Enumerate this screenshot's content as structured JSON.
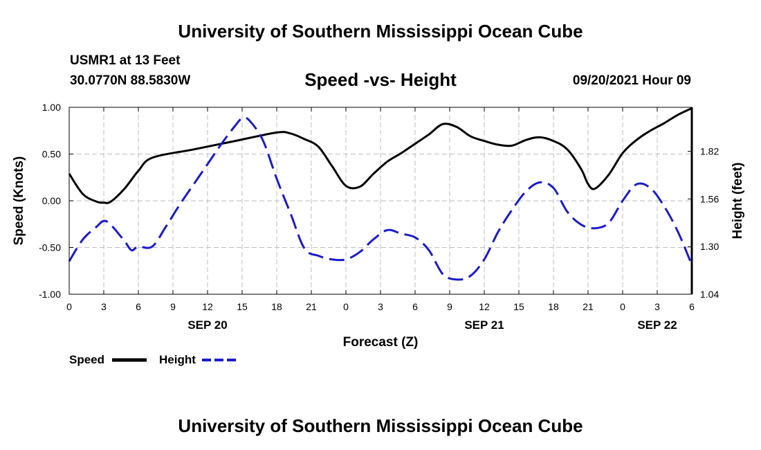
{
  "header": {
    "org_title": "University of Southern Mississippi Ocean Cube",
    "station": "USMR1 at 13 Feet",
    "coords": "30.0770N  88.5830W",
    "subtitle": "Speed -vs- Height",
    "datestamp": "09/20/2021 Hour 09"
  },
  "footer": {
    "org_title": "University of Southern Mississippi Ocean Cube"
  },
  "legend": {
    "speed_label": "Speed",
    "height_label": "Height"
  },
  "colors": {
    "speed": "#000000",
    "height": "#1a1acd",
    "grid": "#bdbdbd"
  },
  "chart_data": {
    "type": "line",
    "title": "Speed -vs- Height",
    "xlabel": "Forecast (Z)",
    "ylabel": "Speed (Knots)",
    "y2label": "Height (feet)",
    "xlim": [
      0,
      45
    ],
    "ylim": [
      -1.0,
      1.0
    ],
    "y2lim": [
      1.04,
      2.06
    ],
    "x_tick_labels": [
      "0",
      "3",
      "6",
      "9",
      "12",
      "15",
      "18",
      "21",
      "0",
      "3",
      "6",
      "9",
      "12",
      "15",
      "18",
      "21",
      "0",
      "3",
      "6"
    ],
    "y_tick_labels": [
      "1.00",
      "0.50",
      "0.00",
      "-0.50",
      "-1.00"
    ],
    "y_ticks": [
      1.0,
      0.5,
      0.0,
      -0.5,
      -1.0
    ],
    "y2_tick_labels": [
      "1.82",
      "1.56",
      "1.30",
      "1.04"
    ],
    "y2_ticks": [
      1.82,
      1.56,
      1.3,
      1.04
    ],
    "date_labels": [
      {
        "label": "SEP 20",
        "x": 10
      },
      {
        "label": "SEP 21",
        "x": 30
      },
      {
        "label": "SEP 22",
        "x": 42.5
      }
    ],
    "grid": true,
    "series": [
      {
        "name": "Speed",
        "axis": "left",
        "style": "solid",
        "x": [
          0,
          1,
          2,
          2.5,
          3,
          4,
          5,
          6,
          9,
          12,
          15,
          16,
          17,
          18,
          19,
          20,
          21,
          22,
          23,
          24,
          25,
          26,
          27,
          28,
          29,
          30,
          31,
          32,
          33,
          34,
          35,
          36,
          37,
          37.5,
          38,
          39,
          40,
          41,
          42,
          43,
          44,
          45
        ],
        "values": [
          0.29,
          0.07,
          -0.01,
          -0.02,
          -0.01,
          0.13,
          0.32,
          0.46,
          0.55,
          0.64,
          0.73,
          0.72,
          0.66,
          0.58,
          0.37,
          0.16,
          0.15,
          0.29,
          0.42,
          0.51,
          0.61,
          0.71,
          0.82,
          0.79,
          0.69,
          0.64,
          0.6,
          0.59,
          0.65,
          0.68,
          0.64,
          0.55,
          0.34,
          0.18,
          0.13,
          0.28,
          0.51,
          0.65,
          0.75,
          0.83,
          0.92,
          0.99
        ]
      },
      {
        "name": "Height",
        "axis": "right",
        "style": "dashed",
        "x": [
          0,
          1,
          2,
          2.5,
          3,
          4,
          4.5,
          5,
          6,
          7,
          8,
          9,
          10,
          11,
          12,
          12.5,
          13,
          14,
          15,
          16,
          17,
          18,
          19,
          20,
          21,
          22,
          23,
          24,
          25,
          26,
          27,
          28,
          29,
          30,
          31,
          32,
          33,
          34,
          35,
          36,
          37,
          38,
          39,
          40,
          41,
          42,
          43,
          44,
          45
        ],
        "values": [
          1.22,
          1.34,
          1.41,
          1.44,
          1.42,
          1.33,
          1.28,
          1.3,
          1.3,
          1.41,
          1.53,
          1.64,
          1.75,
          1.86,
          1.96,
          2.0,
          1.99,
          1.88,
          1.67,
          1.48,
          1.29,
          1.25,
          1.23,
          1.23,
          1.27,
          1.34,
          1.39,
          1.37,
          1.35,
          1.28,
          1.15,
          1.12,
          1.14,
          1.23,
          1.38,
          1.5,
          1.6,
          1.65,
          1.62,
          1.49,
          1.42,
          1.4,
          1.43,
          1.55,
          1.64,
          1.62,
          1.52,
          1.38,
          1.2
        ]
      }
    ]
  }
}
